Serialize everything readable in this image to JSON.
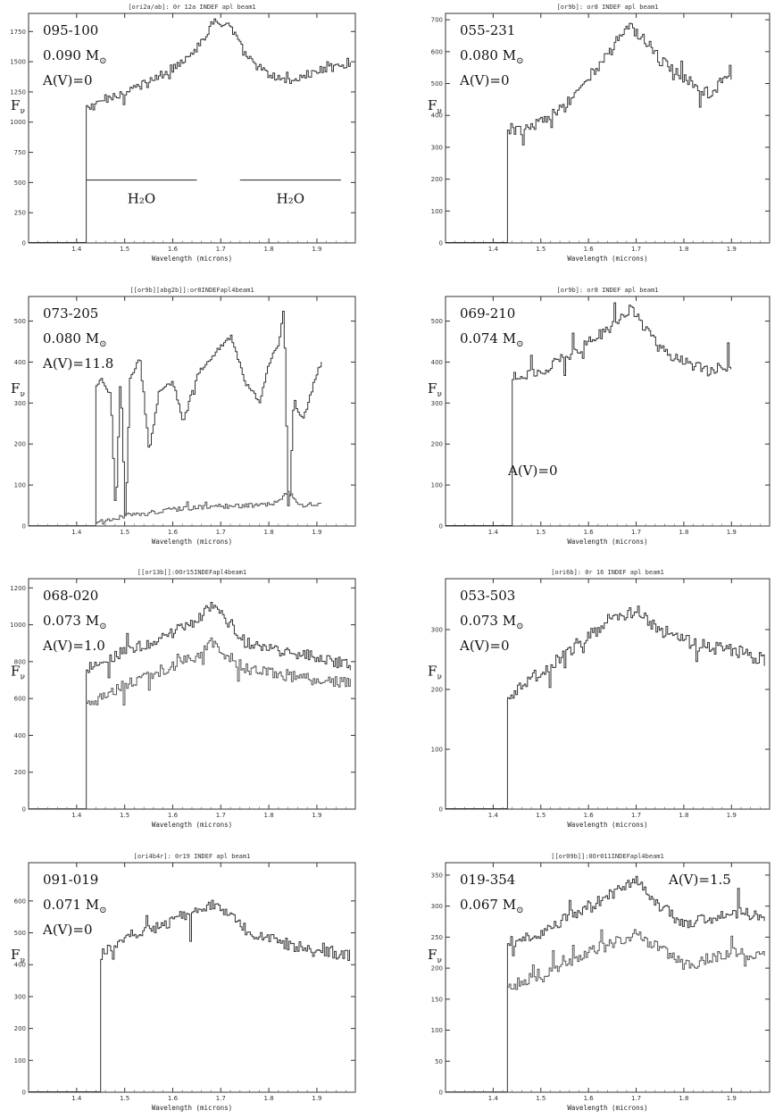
{
  "figure": {
    "y_symbol": "F",
    "y_subscript": "ν",
    "solar_symbol": "⊙",
    "mass_unit": "M"
  },
  "chart_data": [
    {
      "type": "line",
      "title": "[ori2a/ab]: 0r 12a INDEF apl beam1",
      "xlabel": "Wavelength (microns)",
      "xlim": [
        1.3,
        1.98
      ],
      "ylim": [
        0,
        1900
      ],
      "xticks": [
        1.4,
        1.5,
        1.6,
        1.7,
        1.8,
        1.9
      ],
      "yticks": [
        0,
        250,
        500,
        750,
        1000,
        1250,
        1500,
        1750
      ],
      "object_id": "095-100",
      "mass": "0.090",
      "av": "A(V)=0",
      "noise": 0.04,
      "h2o_labels": [
        "H₂O",
        "H₂O"
      ],
      "h2o_line_y": 520,
      "h2o_segments": [
        [
          1.42,
          1.65
        ],
        [
          1.74,
          1.95
        ]
      ],
      "series": [
        {
          "x": [
            1.42,
            1.45,
            1.5,
            1.55,
            1.6,
            1.65,
            1.69,
            1.72,
            1.75,
            1.8,
            1.85,
            1.9,
            1.97
          ],
          "y": [
            1100,
            1180,
            1250,
            1330,
            1450,
            1620,
            1860,
            1780,
            1550,
            1380,
            1350,
            1420,
            1500
          ]
        }
      ]
    },
    {
      "type": "line",
      "title": "[or9b]: or8 INDEF apl beam1",
      "xlabel": "Wavelength (microns)",
      "xlim": [
        1.3,
        1.98
      ],
      "ylim": [
        0,
        720
      ],
      "xticks": [
        1.4,
        1.5,
        1.6,
        1.7,
        1.8,
        1.9
      ],
      "yticks": [
        0,
        100,
        200,
        300,
        400,
        500,
        600,
        700
      ],
      "object_id": "055-231",
      "mass": "0.080",
      "av": "A(V)=0",
      "noise": 0.05,
      "series": [
        {
          "x": [
            1.43,
            1.45,
            1.5,
            1.55,
            1.6,
            1.65,
            1.68,
            1.72,
            1.75,
            1.8,
            1.85,
            1.9
          ],
          "y": [
            360,
            350,
            380,
            430,
            520,
            610,
            690,
            630,
            570,
            520,
            470,
            520
          ]
        }
      ]
    },
    {
      "type": "line",
      "title": "[[or9b][abg2b]]:or8INDEFapl4beam1",
      "xlabel": "Wavelength (microns)",
      "xlim": [
        1.3,
        1.98
      ],
      "ylim": [
        0,
        560
      ],
      "xticks": [
        1.4,
        1.5,
        1.6,
        1.7,
        1.8,
        1.9
      ],
      "yticks": [
        0,
        100,
        200,
        300,
        400,
        500
      ],
      "object_id": "073-205",
      "mass": "0.080",
      "av": "A(V)=11.8",
      "noise": 0.02,
      "series": [
        {
          "x": [
            1.44,
            1.45,
            1.47,
            1.48,
            1.49,
            1.5,
            1.51,
            1.53,
            1.55,
            1.57,
            1.6,
            1.62,
            1.65,
            1.7,
            1.72,
            1.75,
            1.78,
            1.8,
            1.82,
            1.83,
            1.84,
            1.85,
            1.87,
            1.9,
            1.91
          ],
          "y": [
            340,
            360,
            320,
            20,
            380,
            5,
            360,
            410,
            180,
            330,
            350,
            250,
            370,
            440,
            460,
            350,
            300,
            400,
            450,
            540,
            0,
            300,
            260,
            380,
            400
          ]
        },
        {
          "x": [
            1.44,
            1.5,
            1.55,
            1.6,
            1.65,
            1.7,
            1.75,
            1.8,
            1.82,
            1.84,
            1.86,
            1.9,
            1.91
          ],
          "y": [
            5,
            25,
            32,
            40,
            45,
            48,
            50,
            52,
            60,
            85,
            50,
            55,
            60
          ]
        }
      ]
    },
    {
      "type": "line",
      "title": "[or9b]: or8 INDEF apl beam1",
      "xlabel": "Wavelength (microns)",
      "xlim": [
        1.3,
        1.98
      ],
      "ylim": [
        0,
        560
      ],
      "xticks": [
        1.4,
        1.5,
        1.6,
        1.7,
        1.8,
        1.9
      ],
      "yticks": [
        0,
        100,
        200,
        300,
        400,
        500
      ],
      "object_id": "069-210",
      "mass": "0.074",
      "av": "A(V)=0",
      "noise": 0.05,
      "series": [
        {
          "x": [
            1.44,
            1.45,
            1.5,
            1.55,
            1.6,
            1.65,
            1.69,
            1.72,
            1.75,
            1.8,
            1.85,
            1.9
          ],
          "y": [
            370,
            360,
            380,
            410,
            450,
            490,
            530,
            480,
            430,
            400,
            380,
            390
          ]
        }
      ]
    },
    {
      "type": "line",
      "title": "[[or13b]]:0Or15INDEFapl4beam1",
      "xlabel": "Wavelength (microns)",
      "xlim": [
        1.3,
        1.98
      ],
      "ylim": [
        0,
        1250
      ],
      "xticks": [
        1.4,
        1.5,
        1.6,
        1.7,
        1.8,
        1.9
      ],
      "yticks": [
        0,
        200,
        400,
        600,
        800,
        1000,
        1200
      ],
      "object_id": "068-020",
      "mass": "0.073",
      "av": "A(V)=1.0",
      "noise": 0.05,
      "series": [
        {
          "x": [
            1.42,
            1.45,
            1.5,
            1.55,
            1.6,
            1.65,
            1.68,
            1.72,
            1.75,
            1.8,
            1.85,
            1.9,
            1.97
          ],
          "y": [
            760,
            780,
            860,
            900,
            960,
            1030,
            1100,
            1000,
            900,
            870,
            850,
            820,
            780
          ]
        },
        {
          "x": [
            1.42,
            1.45,
            1.5,
            1.55,
            1.6,
            1.65,
            1.68,
            1.72,
            1.75,
            1.8,
            1.85,
            1.9,
            1.97
          ],
          "y": [
            580,
            600,
            680,
            730,
            780,
            830,
            900,
            820,
            760,
            740,
            720,
            700,
            680
          ]
        }
      ]
    },
    {
      "type": "line",
      "title": "[ori6b]: 0r 16 INDEF apl beam1",
      "xlabel": "Wavelength (microns)",
      "xlim": [
        1.3,
        1.98
      ],
      "ylim": [
        0,
        385
      ],
      "xticks": [
        1.4,
        1.5,
        1.6,
        1.7,
        1.8,
        1.9
      ],
      "yticks": [
        0,
        100,
        200,
        300
      ],
      "object_id": "053-503",
      "mass": "0.073",
      "av": "A(V)=0",
      "noise": 0.06,
      "series": [
        {
          "x": [
            1.43,
            1.45,
            1.5,
            1.55,
            1.6,
            1.65,
            1.7,
            1.75,
            1.8,
            1.85,
            1.9,
            1.97
          ],
          "y": [
            180,
            200,
            230,
            260,
            290,
            320,
            330,
            300,
            280,
            270,
            265,
            250
          ]
        }
      ]
    },
    {
      "type": "line",
      "title": "[ori4b4r]: 0r19 INDEF apl beam1",
      "xlabel": "Wavelength (microns)",
      "xlim": [
        1.3,
        1.98
      ],
      "ylim": [
        0,
        720
      ],
      "xticks": [
        1.4,
        1.5,
        1.6,
        1.7,
        1.8,
        1.9
      ],
      "yticks": [
        0,
        100,
        200,
        300,
        400,
        500,
        600
      ],
      "object_id": "091-019",
      "mass": "0.071",
      "av": "A(V)=0",
      "noise": 0.05,
      "series": [
        {
          "x": [
            1.45,
            1.47,
            1.5,
            1.55,
            1.6,
            1.65,
            1.69,
            1.72,
            1.75,
            1.8,
            1.85,
            1.9,
            1.97
          ],
          "y": [
            430,
            460,
            490,
            510,
            540,
            570,
            590,
            550,
            510,
            480,
            460,
            440,
            430
          ]
        }
      ]
    },
    {
      "type": "line",
      "title": "[[or09b]]:0Or011INDEFapl4beam1",
      "xlabel": "Wavelength (microns)",
      "xlim": [
        1.3,
        1.98
      ],
      "ylim": [
        0,
        370
      ],
      "xticks": [
        1.4,
        1.5,
        1.6,
        1.7,
        1.8,
        1.9
      ],
      "yticks": [
        0,
        50,
        100,
        150,
        200,
        250,
        300,
        350
      ],
      "object_id": "019-354",
      "mass": "0.067",
      "av": "A(V)=1.5",
      "av_position": "top-right",
      "noise": 0.05,
      "series": [
        {
          "x": [
            1.43,
            1.45,
            1.5,
            1.55,
            1.6,
            1.65,
            1.7,
            1.75,
            1.8,
            1.85,
            1.9,
            1.97
          ],
          "y": [
            240,
            245,
            260,
            280,
            300,
            320,
            340,
            300,
            270,
            280,
            290,
            285
          ]
        },
        {
          "x": [
            1.43,
            1.45,
            1.5,
            1.55,
            1.6,
            1.65,
            1.7,
            1.75,
            1.8,
            1.85,
            1.9,
            1.97
          ],
          "y": [
            170,
            175,
            190,
            205,
            225,
            240,
            255,
            230,
            205,
            215,
            225,
            220
          ]
        }
      ]
    }
  ]
}
